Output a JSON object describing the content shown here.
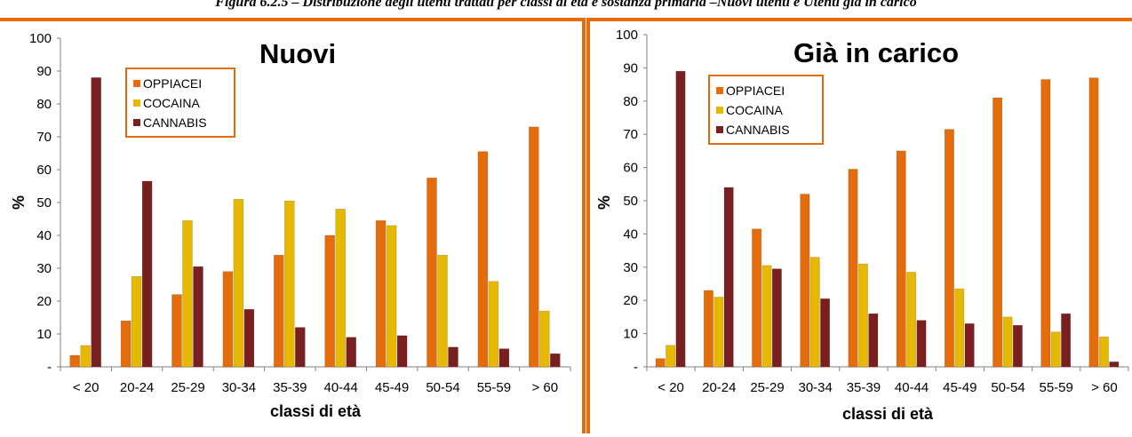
{
  "figure_caption": "Figura 6.2.5 – Distribuzione degli utenti trattati per classi di età e sostanza primaria –Nuovi utenti e Utenti già in carico",
  "colors": {
    "OPPIACEI": "#E46C0A",
    "COCAINA": "#E6B800",
    "CANNABIS": "#7A1F1F",
    "frame": "#E46C0A"
  },
  "chart_data": [
    {
      "type": "bar",
      "title": "Nuovi",
      "xlabel": "classi di età",
      "ylabel": "%",
      "ylim": [
        0,
        100
      ],
      "yticks": [
        "-",
        "10",
        "20",
        "30",
        "40",
        "50",
        "60",
        "70",
        "80",
        "90",
        "100"
      ],
      "grid": false,
      "legend_position": "top-left",
      "categories": [
        "< 20",
        "20-24",
        "25-29",
        "30-34",
        "35-39",
        "40-44",
        "45-49",
        "50-54",
        "55-59",
        "> 60"
      ],
      "series": [
        {
          "name": "OPPIACEI",
          "values": [
            3.5,
            14,
            22,
            29,
            34,
            40,
            44.5,
            57.5,
            65.5,
            73
          ]
        },
        {
          "name": "COCAINA",
          "values": [
            6.5,
            27.5,
            44.5,
            51,
            50.5,
            48,
            43,
            34,
            26,
            17
          ]
        },
        {
          "name": "CANNABIS",
          "values": [
            88,
            56.5,
            30.5,
            17.5,
            12,
            9,
            9.5,
            6,
            5.5,
            4
          ]
        }
      ]
    },
    {
      "type": "bar",
      "title": "Già in carico",
      "xlabel": "classi di età",
      "ylabel": "%",
      "ylim": [
        0,
        100
      ],
      "yticks": [
        "-",
        "10",
        "20",
        "30",
        "40",
        "50",
        "60",
        "70",
        "80",
        "90",
        "100"
      ],
      "grid": false,
      "legend_position": "top-left",
      "categories": [
        "< 20",
        "20-24",
        "25-29",
        "30-34",
        "35-39",
        "40-44",
        "45-49",
        "50-54",
        "55-59",
        "> 60"
      ],
      "series": [
        {
          "name": "OPPIACEI",
          "values": [
            2.5,
            23,
            41.5,
            52,
            59.5,
            65,
            71.5,
            81,
            86.5,
            87
          ]
        },
        {
          "name": "COCAINA",
          "values": [
            6.5,
            21,
            30.5,
            33,
            31,
            28.5,
            23.5,
            15,
            10.5,
            9
          ]
        },
        {
          "name": "CANNABIS",
          "values": [
            89,
            54,
            29.5,
            20.5,
            16,
            14,
            13,
            12.5,
            16,
            1.5
          ]
        }
      ]
    }
  ]
}
